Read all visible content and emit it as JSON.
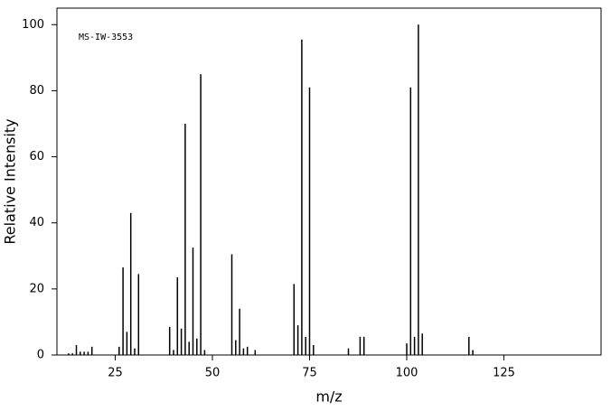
{
  "chart_data": {
    "type": "bar",
    "annotation": "MS-IW-3553",
    "xlabel": "m/z",
    "ylabel": "Relative Intensity",
    "x": [
      13,
      14,
      15,
      16,
      17,
      18,
      19,
      26,
      27,
      28,
      29,
      30,
      31,
      39,
      40,
      41,
      42,
      43,
      44,
      45,
      46,
      47,
      48,
      55,
      56,
      57,
      58,
      59,
      61,
      71,
      72,
      73,
      74,
      75,
      76,
      85,
      88,
      89,
      100,
      101,
      102,
      103,
      104,
      116,
      117
    ],
    "values": [
      0.5,
      0.5,
      3,
      1,
      1,
      1,
      2.5,
      2.5,
      26.5,
      7,
      43,
      2,
      24.5,
      8.5,
      1.5,
      23.5,
      8,
      70,
      4,
      32.5,
      5,
      85,
      1.5,
      30.5,
      4.5,
      14,
      2,
      2.5,
      1.5,
      21.5,
      9,
      95.5,
      5.5,
      81,
      3,
      2,
      5.5,
      5.5,
      3.5,
      81,
      5.5,
      100,
      6.5,
      5.5,
      1.5
    ],
    "color": "#000000",
    "xlim": [
      10,
      150
    ],
    "ylim": [
      0,
      105
    ],
    "xticks": [
      25,
      50,
      75,
      100,
      125
    ],
    "yticks": [
      0,
      20,
      40,
      60,
      80,
      100
    ]
  }
}
